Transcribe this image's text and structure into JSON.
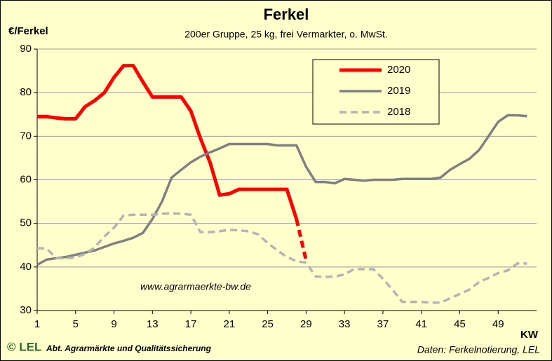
{
  "chart_data": {
    "type": "line",
    "title": "Ferkel",
    "subtitle": "200er Gruppe, 25 kg, frei Vermarkter, o. MwSt.",
    "y_label": "€/Ferkel",
    "x_label": "KW",
    "annotation": "www.agrarmaerkte-bw.de",
    "logo": "© LEL",
    "footer": "Abt. Agrarmärkte und Qualitätssicherung",
    "source": "Daten: Ferkelnotierung, LEL",
    "x": [
      1,
      2,
      3,
      4,
      5,
      6,
      7,
      8,
      9,
      10,
      11,
      12,
      13,
      14,
      15,
      16,
      17,
      18,
      19,
      20,
      21,
      22,
      23,
      24,
      25,
      26,
      27,
      28,
      29,
      30,
      31,
      32,
      33,
      34,
      35,
      36,
      37,
      38,
      39,
      40,
      41,
      42,
      43,
      44,
      45,
      46,
      47,
      48,
      49,
      50,
      51,
      52
    ],
    "series": [
      {
        "name": "2020",
        "color": "#ff0000",
        "width": 5,
        "dash": false,
        "last_segment_dashed": true,
        "values": [
          74.5,
          74.5,
          74.2,
          74,
          74,
          76.8,
          78.2,
          80,
          83.5,
          86.2,
          86.2,
          82.5,
          79,
          79,
          79,
          79,
          75.8,
          69.5,
          64,
          56.5,
          56.8,
          57.8,
          57.8,
          57.8,
          57.8,
          57.8,
          57.8,
          51,
          41.5,
          null,
          null,
          null,
          null,
          null,
          null,
          null,
          null,
          null,
          null,
          null,
          null,
          null,
          null,
          null,
          null,
          null,
          null,
          null,
          null,
          null,
          null,
          null
        ]
      },
      {
        "name": "2019",
        "color": "#808080",
        "width": 3.5,
        "dash": false,
        "values": [
          40.5,
          41.7,
          42,
          42.3,
          42.8,
          43.3,
          43.8,
          44.6,
          45.4,
          46,
          46.7,
          47.8,
          51,
          55,
          60.5,
          62.3,
          64,
          65.3,
          66.3,
          67.2,
          68.2,
          68.2,
          68.2,
          68.2,
          68.2,
          67.9,
          67.9,
          67.9,
          63,
          59.5,
          59.5,
          59.2,
          60.2,
          60,
          59.8,
          60,
          60,
          60,
          60.2,
          60.2,
          60.2,
          60.2,
          60.5,
          62.3,
          63.6,
          64.8,
          66.8,
          70,
          73.3,
          74.8,
          74.8,
          74.6
        ]
      },
      {
        "name": "2018",
        "color": "#b4b4b4",
        "width": 3.5,
        "dash": true,
        "values": [
          44.3,
          44.2,
          42,
          42,
          42.2,
          43,
          44.5,
          47,
          49,
          51.8,
          52,
          52,
          52,
          52.2,
          52.3,
          52.2,
          52,
          48,
          48,
          48.2,
          48.5,
          48.4,
          48.2,
          47.5,
          45.5,
          43.8,
          42.3,
          41.3,
          41,
          37.8,
          37.7,
          37.8,
          38.3,
          39.5,
          39.5,
          39.5,
          37.3,
          34.8,
          32,
          32,
          32,
          31.8,
          31.8,
          32.8,
          33.8,
          34.8,
          36.5,
          37.5,
          38.6,
          39.2,
          40.8,
          40.8
        ]
      }
    ],
    "xlim": [
      1,
      53
    ],
    "xticks": [
      1,
      5,
      9,
      13,
      17,
      21,
      25,
      29,
      33,
      37,
      41,
      45,
      49
    ],
    "ylim": [
      30,
      90
    ],
    "yticks": [
      30,
      40,
      50,
      60,
      70,
      80,
      90
    ],
    "grid": true
  }
}
